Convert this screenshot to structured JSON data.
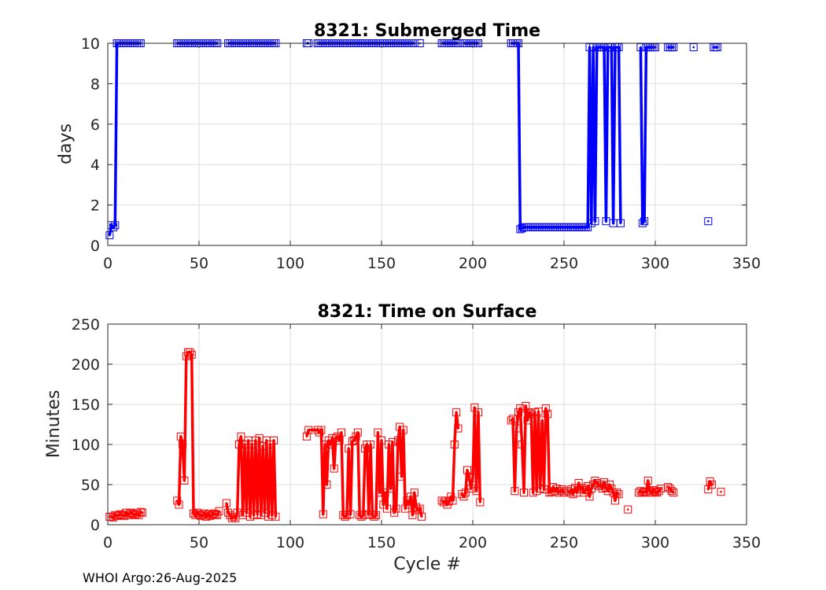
{
  "footer": "WHOI Argo:26-Aug-2025",
  "chart_data": [
    {
      "type": "line",
      "title": "8321: Submerged Time",
      "xlabel": "",
      "ylabel": "days",
      "xlim": [
        0,
        350
      ],
      "ylim": [
        0,
        10
      ],
      "xticks": [
        0,
        50,
        100,
        150,
        200,
        250,
        300,
        350
      ],
      "yticks": [
        0,
        2,
        4,
        6,
        8,
        10
      ],
      "grid": true,
      "color": "#0000ff",
      "series": [
        {
          "name": "submerged",
          "x": [
            1,
            2,
            3,
            4,
            5,
            6,
            7,
            8,
            9,
            10,
            11,
            12,
            13,
            14,
            15,
            16,
            17,
            18
          ],
          "y": [
            0.5,
            1,
            0.9,
            1,
            10,
            10,
            10,
            10,
            10,
            10,
            10,
            10,
            10,
            10,
            10,
            10,
            10,
            10
          ]
        },
        {
          "name": "submerged",
          "x": [
            38,
            39,
            40,
            41,
            42,
            43,
            44,
            45,
            46,
            47,
            48,
            49,
            50,
            51,
            52,
            53,
            54,
            55,
            56,
            57,
            58,
            59,
            60
          ],
          "y": [
            10,
            10,
            10,
            10,
            10,
            10,
            10,
            10,
            10,
            10,
            10,
            10,
            10,
            10,
            10,
            10,
            10,
            10,
            10,
            10,
            10,
            10,
            10
          ]
        },
        {
          "name": "submerged",
          "x": [
            66,
            67,
            68,
            69,
            70,
            71,
            72,
            73,
            74,
            75,
            76,
            77,
            78,
            79,
            80,
            81,
            82,
            83,
            84,
            85,
            86,
            87,
            88,
            89,
            90,
            91,
            92
          ],
          "y": [
            10,
            10,
            10,
            10,
            10,
            10,
            10,
            10,
            10,
            10,
            10,
            10,
            10,
            10,
            10,
            10,
            10,
            10,
            10,
            10,
            10,
            10,
            10,
            10,
            10,
            10,
            10
          ]
        },
        {
          "name": "submerged",
          "x": [
            109,
            110
          ],
          "y": [
            10,
            10
          ]
        },
        {
          "name": "submerged",
          "x": [
            115,
            116,
            117,
            118,
            119,
            120,
            121,
            122,
            123,
            124,
            125,
            126,
            127,
            128,
            129,
            130,
            131,
            132,
            133,
            134,
            135,
            136,
            137,
            138,
            139,
            140,
            141,
            142,
            143,
            144,
            145,
            146,
            147,
            148,
            149,
            150,
            151,
            152,
            153,
            154,
            155,
            156,
            157,
            158,
            159,
            160,
            161,
            162,
            163,
            164,
            165,
            166,
            167,
            168
          ],
          "y": [
            10,
            10,
            10,
            10,
            10,
            10,
            10,
            10,
            10,
            10,
            10,
            10,
            10,
            10,
            10,
            10,
            10,
            10,
            10,
            10,
            10,
            10,
            10,
            10,
            10,
            10,
            10,
            10,
            10,
            10,
            10,
            10,
            10,
            10,
            10,
            10,
            10,
            10,
            10,
            10,
            10,
            10,
            10,
            10,
            10,
            10,
            10,
            10,
            10,
            10,
            10,
            10,
            10,
            10
          ]
        },
        {
          "name": "submerged",
          "x": [
            171
          ],
          "y": [
            10
          ]
        },
        {
          "name": "submerged",
          "x": [
            183,
            184,
            185,
            186,
            187,
            188,
            189,
            190,
            191,
            192
          ],
          "y": [
            10,
            10,
            10,
            10,
            10,
            10,
            10,
            10,
            10,
            10
          ]
        },
        {
          "name": "submerged",
          "x": [
            195,
            196,
            197,
            198,
            199,
            200,
            201,
            202,
            203
          ],
          "y": [
            10,
            10,
            10,
            10,
            10,
            10,
            10,
            10,
            10
          ]
        },
        {
          "name": "submerged",
          "x": [
            221,
            222,
            223,
            224,
            225,
            226,
            227,
            228,
            229,
            230,
            231,
            232,
            233,
            234,
            235,
            236,
            237,
            238,
            239,
            240,
            241,
            242,
            243,
            244,
            245,
            246,
            247,
            248,
            249,
            250,
            251,
            252,
            253,
            254,
            255,
            256,
            257,
            258,
            259,
            260,
            261,
            262,
            263,
            264,
            265,
            266,
            267,
            268,
            269,
            270,
            271,
            272,
            273,
            274,
            275,
            276,
            277,
            278,
            279,
            280,
            281
          ],
          "y": [
            10,
            10,
            10,
            10,
            10,
            0.8,
            0.85,
            0.9,
            0.9,
            0.9,
            0.9,
            0.9,
            0.9,
            0.9,
            0.9,
            0.9,
            0.9,
            0.9,
            0.9,
            0.9,
            0.9,
            0.9,
            0.9,
            0.9,
            0.9,
            0.9,
            0.9,
            0.9,
            0.9,
            0.9,
            0.9,
            0.9,
            0.9,
            0.9,
            0.9,
            0.9,
            0.9,
            0.9,
            0.9,
            0.9,
            0.9,
            0.9,
            0.9,
            9.8,
            1.1,
            9.8,
            1.2,
            9.8,
            9.8,
            9.8,
            9.8,
            9.8,
            1.2,
            9.8,
            9.8,
            9.8,
            1.1,
            9.8,
            9.8,
            9.8,
            1.1
          ]
        },
        {
          "name": "submerged",
          "x": [
            292,
            293,
            294,
            295,
            296,
            297,
            298,
            299,
            300
          ],
          "y": [
            9.8,
            1.1,
            1.2,
            9.8,
            9.8,
            9.8,
            9.8,
            9.8,
            9.8
          ]
        },
        {
          "name": "submerged",
          "x": [
            307,
            308,
            309,
            310
          ],
          "y": [
            9.8,
            9.8,
            9.8,
            9.8
          ]
        },
        {
          "name": "submerged",
          "x": [
            321
          ],
          "y": [
            9.8
          ]
        },
        {
          "name": "submerged",
          "x": [
            329
          ],
          "y": [
            1.2
          ]
        },
        {
          "name": "submerged",
          "x": [
            332,
            333,
            334
          ],
          "y": [
            9.8,
            9.8,
            9.8
          ]
        }
      ]
    },
    {
      "type": "line",
      "title": "8321: Time on Surface",
      "xlabel": "Cycle #",
      "ylabel": "Minutes",
      "xlim": [
        0,
        350
      ],
      "ylim": [
        0,
        250
      ],
      "xticks": [
        0,
        50,
        100,
        150,
        200,
        250,
        300,
        350
      ],
      "yticks": [
        0,
        50,
        100,
        150,
        200,
        250
      ],
      "grid": true,
      "color": "#ff0000",
      "series": [
        {
          "name": "surface",
          "x": [
            1,
            2,
            3,
            4,
            5,
            6,
            7,
            8,
            9,
            10,
            11,
            12,
            13,
            14,
            15,
            16,
            17,
            18,
            19
          ],
          "y": [
            10,
            10,
            9,
            12,
            11,
            12,
            13,
            12,
            11,
            15,
            12,
            14,
            15,
            13,
            12,
            14,
            12,
            16,
            15
          ]
        },
        {
          "name": "surface",
          "x": [
            38,
            39,
            40,
            41,
            42,
            43,
            44,
            45,
            46,
            47,
            48,
            49,
            50,
            51,
            52,
            53,
            54,
            55,
            56,
            57,
            58,
            59,
            60,
            61
          ],
          "y": [
            30,
            25,
            110,
            100,
            55,
            210,
            215,
            215,
            212,
            14,
            12,
            15,
            13,
            11,
            12,
            14,
            10,
            13,
            11,
            12,
            14,
            13,
            12,
            17
          ]
        },
        {
          "name": "surface",
          "x": [
            65,
            66,
            67,
            68,
            69,
            70,
            71,
            72,
            73,
            74,
            75,
            76,
            77,
            78,
            79,
            80,
            81,
            82,
            83,
            84,
            85,
            86,
            87,
            88,
            89,
            90,
            91,
            92
          ],
          "y": [
            27,
            15,
            12,
            8,
            10,
            8,
            15,
            100,
            110,
            12,
            100,
            15,
            105,
            10,
            100,
            12,
            105,
            13,
            108,
            12,
            98,
            15,
            105,
            10,
            100,
            12,
            105,
            10
          ]
        },
        {
          "name": "surface",
          "x": [
            109,
            110,
            115,
            116,
            117,
            118,
            119,
            120,
            121,
            122,
            123,
            124,
            125,
            126,
            127,
            128,
            129,
            130,
            131,
            132,
            133,
            134,
            135,
            136,
            137,
            138,
            139,
            140,
            141,
            142,
            143,
            144,
            145,
            146,
            147,
            148,
            149,
            150,
            151,
            152,
            153,
            154,
            155,
            156,
            157,
            158,
            159,
            160,
            161,
            162,
            163,
            164,
            165,
            166,
            167,
            168,
            169,
            170,
            171,
            172
          ],
          "y": [
            110,
            118,
            118,
            115,
            118,
            13,
            100,
            50,
            105,
            100,
            108,
            70,
            108,
            110,
            105,
            115,
            12,
            10,
            12,
            95,
            13,
            104,
            105,
            110,
            115,
            12,
            10,
            12,
            95,
            100,
            13,
            100,
            12,
            10,
            12,
            115,
            40,
            105,
            25,
            40,
            20,
            100,
            45,
            103,
            15,
            20,
            105,
            122,
            60,
            118,
            20,
            30,
            25,
            35,
            12,
            40,
            22,
            18,
            20,
            10
          ]
        },
        {
          "name": "surface",
          "x": [
            183,
            184,
            185,
            186,
            187,
            188,
            189,
            190,
            191,
            192
          ],
          "y": [
            30,
            28,
            30,
            25,
            29,
            35,
            30,
            100,
            140,
            120
          ]
        },
        {
          "name": "surface",
          "x": [
            194,
            195,
            196,
            197,
            198,
            199,
            200,
            201,
            202,
            203,
            204
          ],
          "y": [
            38,
            35,
            40,
            68,
            60,
            45,
            58,
            146,
            42,
            140,
            28
          ]
        },
        {
          "name": "surface",
          "x": [
            221,
            222,
            223,
            224,
            225,
            226,
            227,
            228,
            229,
            230,
            231,
            232,
            233,
            234,
            235,
            236,
            237,
            238,
            239,
            240,
            241,
            242,
            243,
            244,
            245,
            246,
            247,
            248,
            249,
            250
          ],
          "y": [
            130,
            132,
            42,
            120,
            140,
            145,
            100,
            40,
            148,
            130,
            140,
            138,
            40,
            140,
            42,
            141,
            45,
            130,
            44,
            145,
            138,
            40,
            41,
            47,
            42,
            45,
            40,
            42,
            44,
            40
          ]
        },
        {
          "name": "surface",
          "x": [
            252,
            253,
            254,
            255,
            256,
            257,
            258,
            259,
            260,
            261,
            262,
            263,
            264,
            265,
            266,
            267,
            268,
            269,
            270,
            271,
            272,
            273,
            274,
            275,
            276,
            277,
            278,
            279,
            280
          ],
          "y": [
            42,
            40,
            44,
            38,
            46,
            40,
            52,
            44,
            46,
            40,
            43,
            48,
            35,
            45,
            50,
            55,
            52,
            48,
            50,
            45,
            53,
            46,
            42,
            50,
            45,
            40,
            30,
            40,
            38
          ]
        },
        {
          "name": "surface",
          "x": [
            285
          ],
          "y": [
            19
          ]
        },
        {
          "name": "surface",
          "x": [
            291,
            292,
            293,
            294,
            295,
            296,
            297,
            298,
            299,
            300,
            301,
            302,
            303
          ],
          "y": [
            40,
            42,
            40,
            41,
            40,
            55,
            42,
            40,
            43,
            41,
            40,
            42,
            45
          ]
        },
        {
          "name": "surface",
          "x": [
            307,
            308,
            309,
            310
          ],
          "y": [
            47,
            45,
            42,
            40
          ]
        },
        {
          "name": "surface",
          "x": [
            329,
            330,
            331
          ],
          "y": [
            44,
            54,
            50
          ]
        },
        {
          "name": "surface",
          "x": [
            336
          ],
          "y": [
            41
          ]
        }
      ]
    }
  ]
}
